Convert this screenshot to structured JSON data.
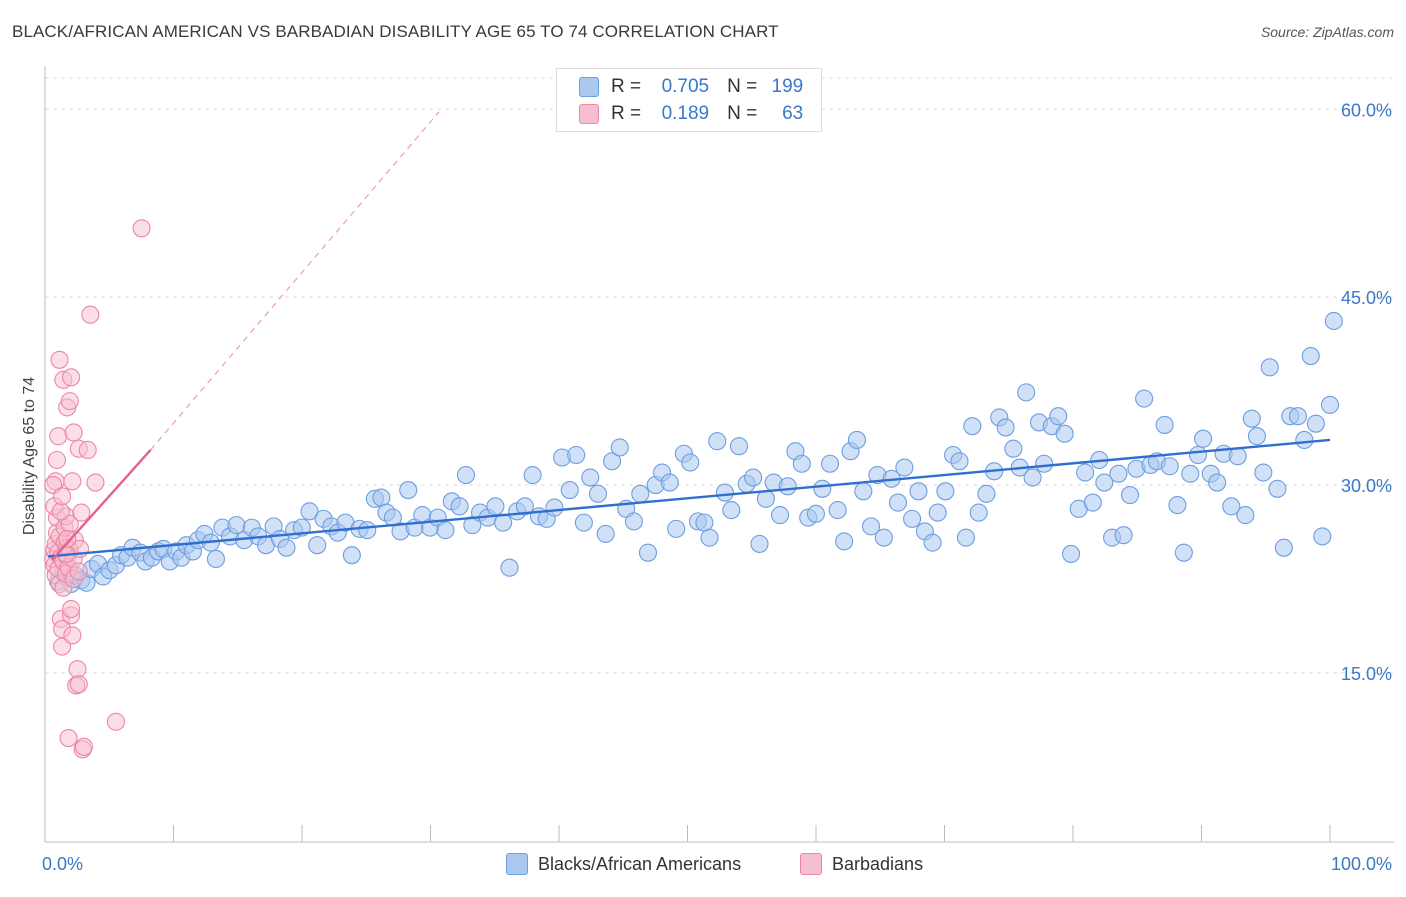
{
  "title": "BLACK/AFRICAN AMERICAN VS BARBADIAN DISABILITY AGE 65 TO 74 CORRELATION CHART",
  "source": "Source: ZipAtlas.com",
  "legend": {
    "row1": {
      "r_label": "R =",
      "r_value": "0.705",
      "n_label": "N =",
      "n_value": "199"
    },
    "row2": {
      "r_label": "R =",
      "r_value": "0.189",
      "n_label": "N =",
      "n_value": "63"
    }
  },
  "bottom_legend": {
    "series1": "Blacks/African Americans",
    "series2": "Barbadians"
  },
  "colors": {
    "blue_fill": "#aac8f0",
    "blue_stroke": "#6d9ee0",
    "blue_line": "#2f6fce",
    "pink_fill": "#f6bfd0",
    "pink_stroke": "#ee86a6",
    "pink_line": "#e8608c",
    "tick_label": "#3a78c9"
  },
  "chart_data": {
    "type": "scatter",
    "title": "BLACK/AFRICAN AMERICAN VS BARBADIAN DISABILITY AGE 65 TO 74 CORRELATION CHART",
    "xlabel": "",
    "ylabel": "Disability Age 65 to 74",
    "xlim": [
      0,
      100
    ],
    "ylim": [
      1.5,
      62.5
    ],
    "x_tick_labels": [
      "0.0%",
      "100.0%"
    ],
    "y_ticks": [
      15,
      30,
      45,
      60
    ],
    "y_tick_labels": [
      "15.0%",
      "30.0%",
      "45.0%",
      "60.0%"
    ],
    "grid": true,
    "legend_position": "top-center",
    "series": [
      {
        "name": "Blacks/African Americans",
        "r": 0.705,
        "n": 199,
        "trend": {
          "x": [
            0,
            100
          ],
          "y": [
            24.3,
            33.6
          ]
        },
        "points": [
          [
            0.8,
            22.3
          ],
          [
            1.2,
            23.0
          ],
          [
            1.5,
            22.6
          ],
          [
            1.8,
            22.1
          ],
          [
            2.1,
            22.8
          ],
          [
            2.6,
            22.4
          ],
          [
            3.0,
            22.2
          ],
          [
            3.4,
            23.3
          ],
          [
            3.9,
            23.7
          ],
          [
            4.3,
            22.7
          ],
          [
            4.8,
            23.2
          ],
          [
            5.3,
            23.6
          ],
          [
            5.7,
            24.4
          ],
          [
            6.2,
            24.2
          ],
          [
            6.6,
            25.0
          ],
          [
            7.2,
            24.6
          ],
          [
            7.6,
            23.9
          ],
          [
            8.1,
            24.2
          ],
          [
            8.6,
            24.7
          ],
          [
            9.0,
            24.9
          ],
          [
            9.5,
            23.9
          ],
          [
            10.0,
            24.7
          ],
          [
            10.4,
            24.2
          ],
          [
            10.8,
            25.2
          ],
          [
            11.3,
            24.7
          ],
          [
            11.7,
            25.6
          ],
          [
            12.2,
            26.1
          ],
          [
            12.7,
            25.4
          ],
          [
            13.1,
            24.1
          ],
          [
            13.6,
            26.6
          ],
          [
            14.2,
            25.9
          ],
          [
            14.7,
            26.8
          ],
          [
            15.3,
            25.6
          ],
          [
            15.9,
            26.6
          ],
          [
            16.4,
            25.9
          ],
          [
            17.0,
            25.2
          ],
          [
            17.6,
            26.7
          ],
          [
            18.1,
            25.7
          ],
          [
            18.6,
            25.0
          ],
          [
            19.2,
            26.4
          ],
          [
            19.8,
            26.6
          ],
          [
            20.4,
            27.9
          ],
          [
            21.0,
            25.2
          ],
          [
            21.5,
            27.3
          ],
          [
            22.1,
            26.7
          ],
          [
            22.6,
            26.2
          ],
          [
            23.2,
            27.0
          ],
          [
            23.7,
            24.4
          ],
          [
            24.3,
            26.5
          ],
          [
            24.9,
            26.4
          ],
          [
            25.5,
            28.9
          ],
          [
            26.0,
            29.0
          ],
          [
            26.4,
            27.8
          ],
          [
            26.9,
            27.4
          ],
          [
            27.5,
            26.3
          ],
          [
            28.1,
            29.6
          ],
          [
            28.6,
            26.6
          ],
          [
            29.2,
            27.6
          ],
          [
            29.8,
            26.6
          ],
          [
            30.4,
            27.4
          ],
          [
            31.0,
            26.4
          ],
          [
            31.5,
            28.7
          ],
          [
            32.1,
            28.3
          ],
          [
            32.6,
            30.8
          ],
          [
            33.1,
            26.8
          ],
          [
            33.7,
            27.8
          ],
          [
            34.3,
            27.4
          ],
          [
            34.9,
            28.3
          ],
          [
            35.5,
            27.0
          ],
          [
            36.0,
            23.4
          ],
          [
            36.6,
            27.9
          ],
          [
            37.2,
            28.3
          ],
          [
            37.8,
            30.8
          ],
          [
            38.3,
            27.5
          ],
          [
            38.9,
            27.3
          ],
          [
            39.5,
            28.2
          ],
          [
            40.1,
            32.2
          ],
          [
            40.7,
            29.6
          ],
          [
            41.2,
            32.4
          ],
          [
            41.8,
            27.0
          ],
          [
            42.3,
            30.6
          ],
          [
            42.9,
            29.3
          ],
          [
            43.5,
            26.1
          ],
          [
            44.0,
            31.9
          ],
          [
            44.6,
            33.0
          ],
          [
            45.1,
            28.1
          ],
          [
            45.7,
            27.1
          ],
          [
            46.2,
            29.3
          ],
          [
            46.8,
            24.6
          ],
          [
            47.4,
            30.0
          ],
          [
            47.9,
            31.0
          ],
          [
            48.5,
            30.2
          ],
          [
            49.0,
            26.5
          ],
          [
            49.6,
            32.5
          ],
          [
            50.1,
            31.8
          ],
          [
            50.7,
            27.1
          ],
          [
            51.2,
            27.0
          ],
          [
            51.6,
            25.8
          ],
          [
            52.2,
            33.5
          ],
          [
            52.8,
            29.4
          ],
          [
            53.3,
            28.0
          ],
          [
            53.9,
            33.1
          ],
          [
            54.5,
            30.1
          ],
          [
            55.0,
            30.6
          ],
          [
            55.5,
            25.3
          ],
          [
            56.0,
            28.9
          ],
          [
            56.6,
            30.2
          ],
          [
            57.1,
            27.6
          ],
          [
            57.7,
            29.9
          ],
          [
            58.3,
            32.7
          ],
          [
            58.8,
            31.7
          ],
          [
            59.3,
            27.4
          ],
          [
            59.9,
            27.7
          ],
          [
            60.4,
            29.7
          ],
          [
            61.0,
            31.7
          ],
          [
            61.6,
            28.0
          ],
          [
            62.1,
            25.5
          ],
          [
            62.6,
            32.7
          ],
          [
            63.1,
            33.6
          ],
          [
            63.6,
            29.5
          ],
          [
            64.2,
            26.7
          ],
          [
            64.7,
            30.8
          ],
          [
            65.2,
            25.8
          ],
          [
            65.8,
            30.5
          ],
          [
            66.3,
            28.6
          ],
          [
            66.8,
            31.4
          ],
          [
            67.4,
            27.3
          ],
          [
            67.9,
            29.5
          ],
          [
            68.4,
            26.3
          ],
          [
            69.0,
            25.4
          ],
          [
            69.4,
            27.8
          ],
          [
            70.0,
            29.5
          ],
          [
            70.6,
            32.4
          ],
          [
            71.1,
            31.9
          ],
          [
            71.6,
            25.8
          ],
          [
            72.1,
            34.7
          ],
          [
            72.6,
            27.8
          ],
          [
            73.2,
            29.3
          ],
          [
            73.8,
            31.1
          ],
          [
            74.2,
            35.4
          ],
          [
            74.7,
            34.6
          ],
          [
            75.3,
            32.9
          ],
          [
            75.8,
            31.4
          ],
          [
            76.3,
            37.4
          ],
          [
            76.8,
            30.6
          ],
          [
            77.3,
            35.0
          ],
          [
            77.7,
            31.7
          ],
          [
            78.3,
            34.7
          ],
          [
            78.8,
            35.5
          ],
          [
            79.3,
            34.1
          ],
          [
            79.8,
            24.5
          ],
          [
            80.4,
            28.1
          ],
          [
            80.9,
            31.0
          ],
          [
            81.5,
            28.6
          ],
          [
            82.0,
            32.0
          ],
          [
            82.4,
            30.2
          ],
          [
            83.0,
            25.8
          ],
          [
            83.5,
            30.9
          ],
          [
            83.9,
            26.0
          ],
          [
            84.4,
            29.2
          ],
          [
            84.9,
            31.3
          ],
          [
            85.5,
            36.9
          ],
          [
            86.0,
            31.6
          ],
          [
            86.5,
            31.9
          ],
          [
            87.1,
            34.8
          ],
          [
            87.5,
            31.5
          ],
          [
            88.1,
            28.4
          ],
          [
            88.6,
            24.6
          ],
          [
            89.1,
            30.9
          ],
          [
            89.7,
            32.4
          ],
          [
            90.1,
            33.7
          ],
          [
            90.7,
            30.9
          ],
          [
            91.2,
            30.2
          ],
          [
            91.7,
            32.5
          ],
          [
            92.3,
            28.3
          ],
          [
            92.8,
            32.3
          ],
          [
            93.4,
            27.6
          ],
          [
            93.9,
            35.3
          ],
          [
            94.3,
            33.9
          ],
          [
            94.8,
            31.0
          ],
          [
            95.3,
            39.4
          ],
          [
            95.9,
            29.7
          ],
          [
            96.4,
            25.0
          ],
          [
            96.9,
            35.5
          ],
          [
            97.5,
            35.5
          ],
          [
            98.0,
            33.6
          ],
          [
            98.5,
            40.3
          ],
          [
            98.9,
            34.9
          ],
          [
            99.4,
            25.9
          ],
          [
            100.0,
            36.4
          ],
          [
            100.3,
            43.1
          ]
        ]
      },
      {
        "name": "Barbadians",
        "r": 0.189,
        "n": 63,
        "trend": {
          "x": [
            0.3,
            8.0
          ],
          "y": [
            24.0,
            32.8
          ]
        },
        "trend_extended": {
          "x": [
            8.0,
            30.5
          ],
          "y": [
            32.8,
            59.8
          ]
        },
        "points": [
          [
            0.4,
            24.1
          ],
          [
            0.5,
            24.8
          ],
          [
            0.5,
            23.6
          ],
          [
            0.6,
            25.3
          ],
          [
            0.6,
            22.8
          ],
          [
            0.7,
            26.2
          ],
          [
            0.7,
            27.4
          ],
          [
            0.8,
            23.3
          ],
          [
            0.8,
            24.6
          ],
          [
            0.9,
            25.9
          ],
          [
            0.9,
            22.1
          ],
          [
            1.0,
            24.2
          ],
          [
            1.0,
            19.3
          ],
          [
            1.1,
            18.5
          ],
          [
            1.1,
            17.1
          ],
          [
            1.2,
            21.8
          ],
          [
            1.2,
            23.9
          ],
          [
            1.3,
            25.4
          ],
          [
            1.3,
            26.6
          ],
          [
            1.4,
            27.5
          ],
          [
            1.4,
            22.9
          ],
          [
            1.5,
            24.3
          ],
          [
            1.5,
            25.0
          ],
          [
            1.6,
            23.4
          ],
          [
            1.7,
            24.8
          ],
          [
            1.7,
            26.9
          ],
          [
            1.8,
            19.6
          ],
          [
            1.8,
            20.1
          ],
          [
            1.9,
            18.0
          ],
          [
            2.0,
            22.5
          ],
          [
            2.0,
            24.1
          ],
          [
            2.1,
            25.6
          ],
          [
            2.2,
            14.0
          ],
          [
            2.3,
            15.3
          ],
          [
            2.4,
            14.1
          ],
          [
            2.4,
            23.1
          ],
          [
            2.5,
            24.9
          ],
          [
            1.6,
            9.8
          ],
          [
            2.7,
            8.9
          ],
          [
            2.8,
            9.1
          ],
          [
            5.3,
            11.1
          ],
          [
            0.6,
            30.3
          ],
          [
            0.7,
            32.0
          ],
          [
            0.8,
            33.9
          ],
          [
            0.9,
            40.0
          ],
          [
            1.2,
            38.4
          ],
          [
            1.5,
            36.2
          ],
          [
            1.7,
            36.7
          ],
          [
            1.8,
            38.6
          ],
          [
            2.0,
            34.2
          ],
          [
            2.4,
            32.9
          ],
          [
            3.1,
            32.8
          ],
          [
            3.3,
            43.6
          ],
          [
            3.7,
            30.2
          ],
          [
            7.3,
            50.5
          ],
          [
            0.4,
            30.0
          ],
          [
            0.5,
            28.3
          ],
          [
            1.0,
            27.9
          ],
          [
            1.1,
            29.1
          ],
          [
            1.4,
            24.5
          ],
          [
            1.5,
            25.7
          ],
          [
            1.9,
            30.3
          ],
          [
            2.6,
            27.8
          ]
        ]
      }
    ]
  }
}
